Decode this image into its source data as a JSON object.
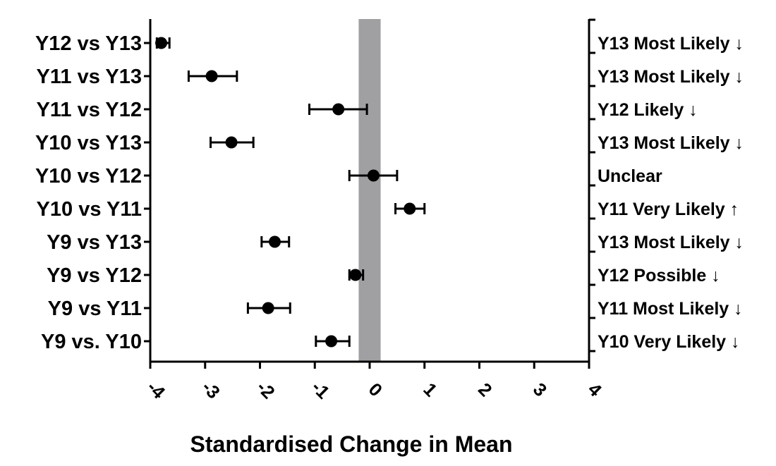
{
  "chart_data": {
    "type": "scatter",
    "title": "",
    "xlabel": "Standardised Change in Mean",
    "ylabel": "",
    "xlim": [
      -4,
      4
    ],
    "x_ticks": [
      "-4",
      "-3",
      "-2",
      "-1",
      "0",
      "1",
      "2",
      "3",
      "4"
    ],
    "grid": false,
    "reference_band": {
      "from": -0.2,
      "to": 0.2,
      "color": "#a0a0a3"
    },
    "comparisons": [
      {
        "label": "Y12 vs Y13",
        "mean": -3.8,
        "lower": -3.88,
        "upper": -3.65,
        "annotation": "Y13 Most Likely ↓"
      },
      {
        "label": "Y11 vs Y13",
        "mean": -2.88,
        "lower": -3.3,
        "upper": -2.42,
        "annotation": "Y13 Most Likely ↓"
      },
      {
        "label": "Y11 vs Y12",
        "mean": -0.57,
        "lower": -1.1,
        "upper": -0.05,
        "annotation": "Y12 Likely ↓"
      },
      {
        "label": "Y10 vs Y13",
        "mean": -2.52,
        "lower": -2.9,
        "upper": -2.12,
        "annotation": "Y13 Most Likely ↓"
      },
      {
        "label": "Y10 vs Y12",
        "mean": 0.07,
        "lower": -0.37,
        "upper": 0.5,
        "annotation": "Unclear"
      },
      {
        "label": "Y10 vs Y11",
        "mean": 0.73,
        "lower": 0.47,
        "upper": 1.0,
        "annotation": "Y11 Very Likely ↑"
      },
      {
        "label": "Y9 vs Y13",
        "mean": -1.73,
        "lower": -1.97,
        "upper": -1.47,
        "annotation": "Y13 Most Likely ↓"
      },
      {
        "label": "Y9 vs Y12",
        "mean": -0.26,
        "lower": -0.37,
        "upper": -0.12,
        "annotation": "Y12 Possible ↓"
      },
      {
        "label": "Y9 vs Y11",
        "mean": -1.85,
        "lower": -2.22,
        "upper": -1.45,
        "annotation": "Y11 Most Likely ↓"
      },
      {
        "label": "Y9 vs. Y10",
        "mean": -0.7,
        "lower": -0.98,
        "upper": -0.37,
        "annotation": "Y10 Very Likely ↓"
      }
    ]
  }
}
